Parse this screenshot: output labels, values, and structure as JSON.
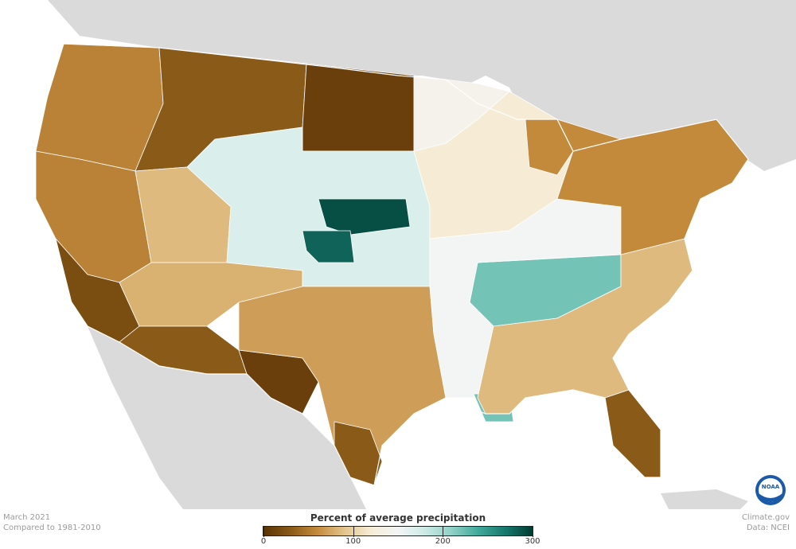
{
  "caption_left": {
    "line1": "March 2021",
    "line2": "Compared to 1981-2010"
  },
  "caption_right": {
    "line1": "Climate.gov",
    "line2": "Data: NCEI"
  },
  "legend": {
    "title": "Percent of average precipitation",
    "ticks": [
      "0",
      "100",
      "200",
      "300"
    ],
    "tick_values": [
      0,
      100,
      200,
      300
    ],
    "range": [
      0,
      300
    ],
    "colors": [
      "#5a3204",
      "#8a5a18",
      "#c48a3c",
      "#e3c48c",
      "#f6ecd6",
      "#f3f5f5",
      "#cdeae6",
      "#8fd0c6",
      "#3fa89a",
      "#16786d",
      "#003a30"
    ]
  },
  "logo": {
    "name": "noaa-logo",
    "text": "NOAA"
  },
  "map": {
    "background": "#ffffff",
    "land_outside": "#dadada",
    "ocean": "#ffffff",
    "regions": [
      {
        "name": "pacific-northwest",
        "value": 55
      },
      {
        "name": "northern-rockies",
        "value": 30
      },
      {
        "name": "northern-plains",
        "value": 10
      },
      {
        "name": "california-nevada",
        "value": 55
      },
      {
        "name": "southern-california",
        "value": 20
      },
      {
        "name": "great-basin",
        "value": 85
      },
      {
        "name": "four-corners",
        "value": 80
      },
      {
        "name": "southern-arizona",
        "value": 30
      },
      {
        "name": "west-texas",
        "value": 10
      },
      {
        "name": "central-plains",
        "value": 170
      },
      {
        "name": "nebraska-core",
        "value": 290
      },
      {
        "name": "colorado-core",
        "value": 280
      },
      {
        "name": "texas",
        "value": 70
      },
      {
        "name": "south-texas",
        "value": 30
      },
      {
        "name": "midwest",
        "value": 120
      },
      {
        "name": "tennessee-valley",
        "value": 220
      },
      {
        "name": "lower-mississippi",
        "value": 150
      },
      {
        "name": "louisiana-coast",
        "value": 220
      },
      {
        "name": "southeast",
        "value": 85
      },
      {
        "name": "florida",
        "value": 30
      },
      {
        "name": "northeast",
        "value": 60
      },
      {
        "name": "minnesota",
        "value": 140
      },
      {
        "name": "michigan",
        "value": 60
      }
    ]
  }
}
